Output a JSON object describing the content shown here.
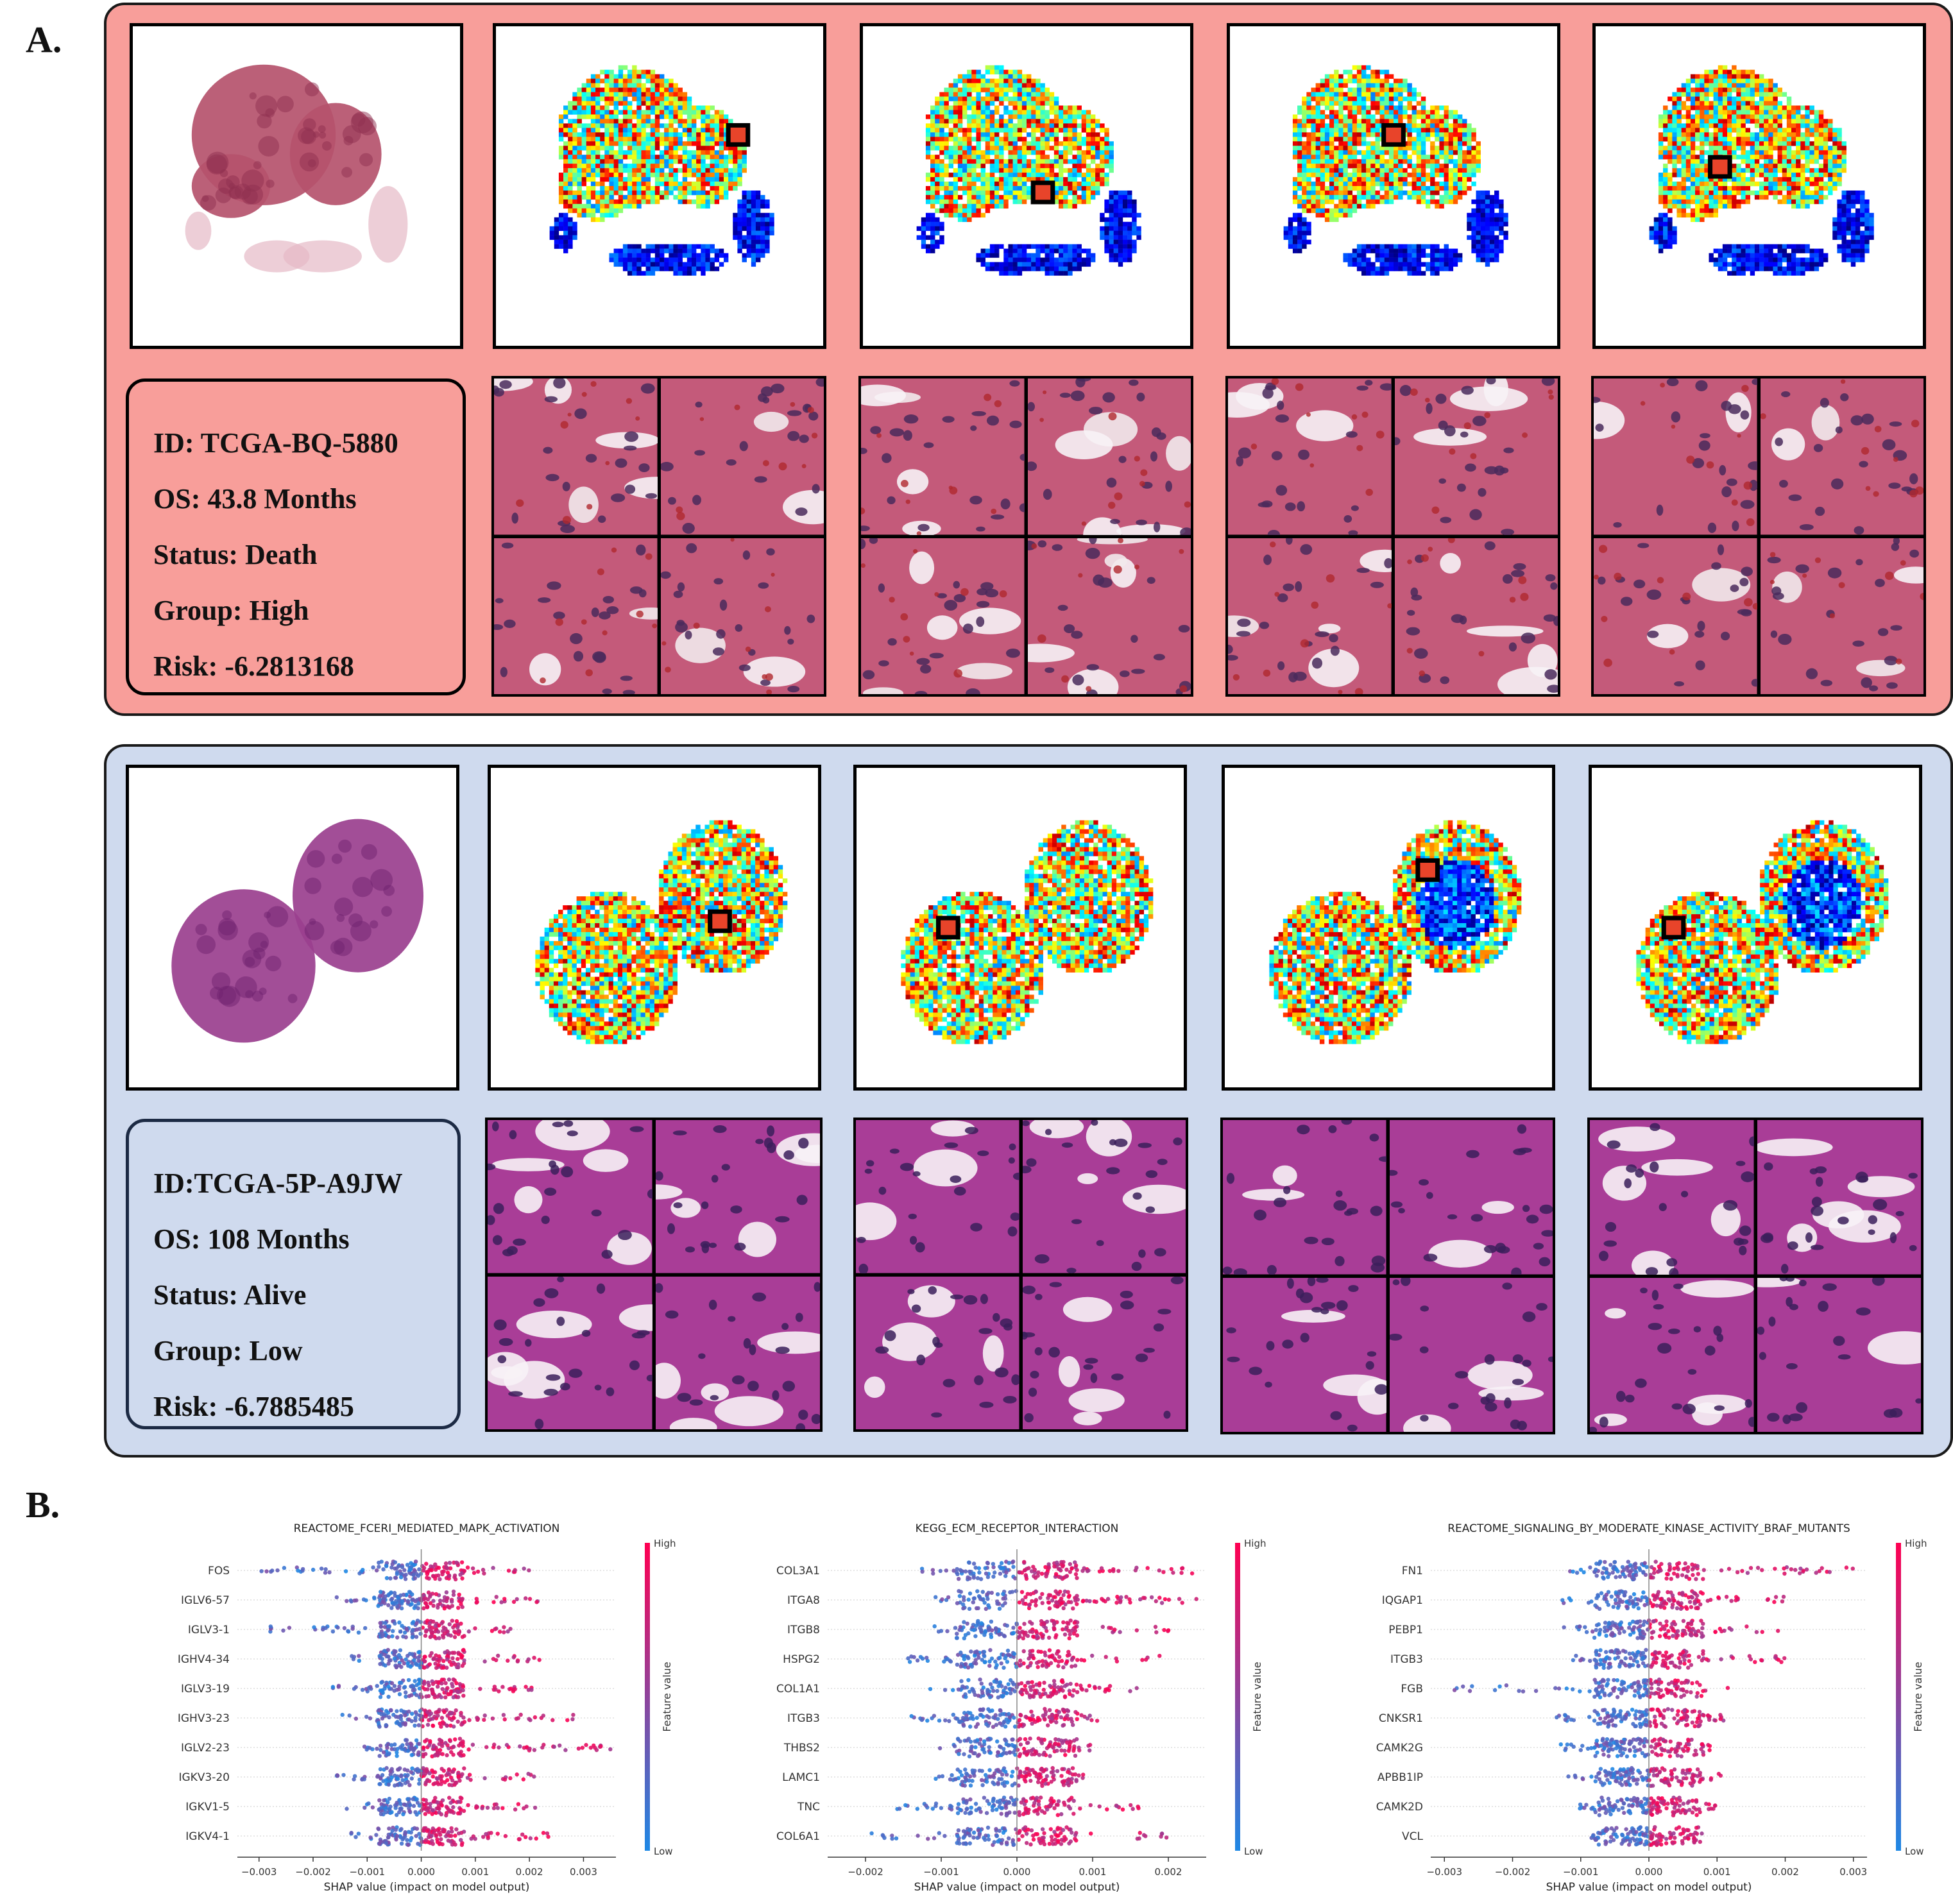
{
  "figure": {
    "section_a_label": "A.",
    "section_b_label": "B."
  },
  "cases": [
    {
      "id_line": "ID: TCGA-BQ-5880",
      "os_line": "OS: 43.8 Months",
      "status_line": "Status: Death",
      "group_line": "Group: High",
      "risk_line": "Risk: -6.2813168",
      "panel_color": "#f89e9a",
      "tissue_color": "#b5526c"
    },
    {
      "id_line": "ID:TCGA-5P-A9JW",
      "os_line": "OS: 108 Months",
      "status_line": "Status: Alive",
      "group_line": "Group: Low",
      "risk_line": "Risk: -6.7885485",
      "panel_color": "#cfdaee",
      "tissue_color": "#9a3f8e"
    }
  ],
  "chart_data": [
    {
      "type": "scatter",
      "subtype": "shap-beeswarm",
      "title": "REACTOME_FCERI_MEDIATED_MAPK_ACTIVATION",
      "xlabel": "SHAP value (impact on model output)",
      "xlim": [
        -0.0034,
        0.0036
      ],
      "xticks": [
        -0.003,
        -0.002,
        -0.001,
        0.0,
        0.001,
        0.002,
        0.003
      ],
      "xtick_labels": [
        "−0.003",
        "−0.002",
        "−0.001",
        "0.000",
        "0.001",
        "0.002",
        "0.003"
      ],
      "features": [
        "FOS",
        "IGLV6-57",
        "IGLV3-1",
        "IGHV4-34",
        "IGLV3-19",
        "IGHV3-23",
        "IGLV2-23",
        "IGKV3-20",
        "IGKV1-5",
        "IGKV4-1"
      ],
      "spread": [
        [
          -0.003,
          0.002
        ],
        [
          -0.0017,
          0.0022
        ],
        [
          -0.0028,
          0.0017
        ],
        [
          -0.0013,
          0.0023
        ],
        [
          -0.0017,
          0.0021
        ],
        [
          -0.0015,
          0.0029
        ],
        [
          -0.0012,
          0.0035
        ],
        [
          -0.0016,
          0.0022
        ],
        [
          -0.0014,
          0.0022
        ],
        [
          -0.0013,
          0.0024
        ]
      ],
      "colorbar": {
        "high": "High",
        "low": "Low",
        "label": "Feature value"
      }
    },
    {
      "type": "scatter",
      "subtype": "shap-beeswarm",
      "title": "KEGG_ECM_RECEPTOR_INTERACTION",
      "xlabel": "SHAP value (impact on model output)",
      "xlim": [
        -0.0025,
        0.0025
      ],
      "xticks": [
        -0.002,
        -0.001,
        0.0,
        0.001,
        0.002
      ],
      "xtick_labels": [
        "−0.002",
        "−0.001",
        "0.000",
        "0.001",
        "0.002"
      ],
      "features": [
        "COL3A1",
        "ITGA8",
        "ITGB8",
        "HSPG2",
        "COL1A1",
        "ITGB3",
        "THBS2",
        "LAMC1",
        "TNC",
        "COL6A1"
      ],
      "spread": [
        [
          -0.0013,
          0.0025
        ],
        [
          -0.0011,
          0.0024
        ],
        [
          -0.0012,
          0.0021
        ],
        [
          -0.0015,
          0.0019
        ],
        [
          -0.0012,
          0.0016
        ],
        [
          -0.0015,
          0.0013
        ],
        [
          -0.0011,
          0.001
        ],
        [
          -0.0011,
          0.0009
        ],
        [
          -0.0016,
          0.0017
        ],
        [
          -0.002,
          0.002
        ]
      ],
      "colorbar": {
        "high": "High",
        "low": "Low",
        "label": "Feature value"
      }
    },
    {
      "type": "scatter",
      "subtype": "shap-beeswarm",
      "title": "REACTOME_SIGNALING_BY_MODERATE_KINASE_ACTIVITY_BRAF_MUTANTS",
      "xlabel": "SHAP value (impact on model output)",
      "xlim": [
        -0.0032,
        0.0032
      ],
      "xticks": [
        -0.003,
        -0.002,
        -0.001,
        0.0,
        0.001,
        0.002,
        0.003
      ],
      "xtick_labels": [
        "−0.003",
        "−0.002",
        "−0.001",
        "0.000",
        "0.001",
        "0.002",
        "0.003"
      ],
      "features": [
        "FN1",
        "IQGAP1",
        "PEBP1",
        "ITGB3",
        "FGB",
        "CNKSR1",
        "CAMK2G",
        "APBB1IP",
        "CAMK2D",
        "VCL"
      ],
      "spread": [
        [
          -0.0012,
          0.003
        ],
        [
          -0.0013,
          0.0021
        ],
        [
          -0.0014,
          0.0019
        ],
        [
          -0.0012,
          0.002
        ],
        [
          -0.0029,
          0.0012
        ],
        [
          -0.0014,
          0.0011
        ],
        [
          -0.0014,
          0.001
        ],
        [
          -0.0012,
          0.0011
        ],
        [
          -0.0011,
          0.001
        ],
        [
          -0.0009,
          0.0008
        ]
      ],
      "colorbar": {
        "high": "High",
        "low": "Low",
        "label": "Feature value"
      }
    }
  ]
}
